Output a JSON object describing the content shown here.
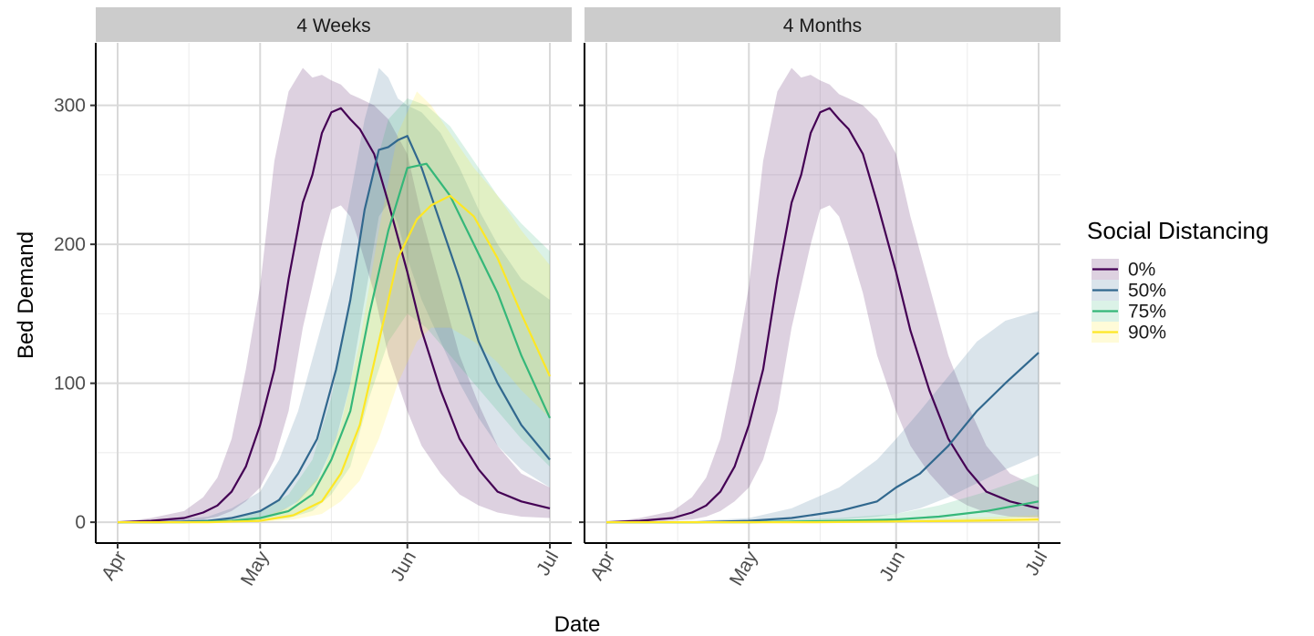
{
  "chart_data": {
    "type": "line",
    "xlabel": "Date",
    "ylabel": "Bed Demand",
    "x_ticks": [
      "Apr",
      "May",
      "Jun",
      "Jul"
    ],
    "xlim": [
      "2020-04-01",
      "2020-07-01"
    ],
    "y_ticks": [
      0,
      100,
      200,
      300
    ],
    "ylim": [
      -15,
      345
    ],
    "grid": true,
    "legend": {
      "title": "Social Distancing",
      "position": "right",
      "entries": [
        "0%",
        "50%",
        "75%",
        "90%"
      ]
    },
    "colors": {
      "0%": "#440154",
      "50%": "#31688e",
      "75%": "#35b779",
      "90%": "#fde725"
    },
    "panels": [
      {
        "title": "4 Weeks",
        "series": [
          {
            "name": "0%",
            "x": [
              "2020-04-01",
              "2020-04-08",
              "2020-04-15",
              "2020-04-19",
              "2020-04-22",
              "2020-04-25",
              "2020-04-28",
              "2020-05-01",
              "2020-05-04",
              "2020-05-07",
              "2020-05-10",
              "2020-05-12",
              "2020-05-14",
              "2020-05-16",
              "2020-05-18",
              "2020-05-20",
              "2020-05-22",
              "2020-05-25",
              "2020-05-28",
              "2020-06-01",
              "2020-06-04",
              "2020-06-08",
              "2020-06-12",
              "2020-06-16",
              "2020-06-20",
              "2020-06-25",
              "2020-07-01"
            ],
            "mean": [
              0,
              1,
              3,
              7,
              12,
              22,
              40,
              70,
              110,
              175,
              230,
              250,
              280,
              295,
              298,
              290,
              283,
              265,
              230,
              180,
              138,
              95,
              60,
              38,
              22,
              15,
              10
            ],
            "lower": [
              0,
              0,
              1,
              2,
              4,
              8,
              15,
              25,
              45,
              80,
              140,
              170,
              200,
              225,
              228,
              220,
              200,
              165,
              120,
              80,
              55,
              35,
              20,
              12,
              7,
              4,
              3
            ],
            "upper": [
              0,
              3,
              8,
              18,
              32,
              60,
              110,
              170,
              260,
              310,
              327,
              320,
              322,
              318,
              315,
              308,
              305,
              300,
              290,
              265,
              220,
              170,
              120,
              85,
              55,
              35,
              25
            ]
          },
          {
            "name": "50%",
            "x": [
              "2020-04-01",
              "2020-04-10",
              "2020-04-20",
              "2020-04-25",
              "2020-05-01",
              "2020-05-05",
              "2020-05-09",
              "2020-05-13",
              "2020-05-17",
              "2020-05-20",
              "2020-05-23",
              "2020-05-26",
              "2020-05-28",
              "2020-05-30",
              "2020-06-01",
              "2020-06-04",
              "2020-06-08",
              "2020-06-12",
              "2020-06-16",
              "2020-06-20",
              "2020-06-25",
              "2020-07-01"
            ],
            "mean": [
              0,
              0,
              1,
              3,
              8,
              16,
              35,
              60,
              110,
              160,
              225,
              268,
              270,
              275,
              278,
              255,
              215,
              175,
              130,
              100,
              70,
              45
            ],
            "lower": [
              0,
              0,
              0,
              1,
              3,
              7,
              15,
              30,
              60,
              100,
              160,
              220,
              230,
              215,
              190,
              160,
              130,
              100,
              75,
              55,
              38,
              25
            ],
            "upper": [
              0,
              1,
              4,
              10,
              22,
              45,
              80,
              130,
              180,
              235,
              290,
              327,
              320,
              305,
              300,
              295,
              280,
              255,
              225,
              200,
              175,
              160
            ]
          },
          {
            "name": "75%",
            "x": [
              "2020-04-01",
              "2020-04-15",
              "2020-04-25",
              "2020-05-01",
              "2020-05-07",
              "2020-05-12",
              "2020-05-16",
              "2020-05-20",
              "2020-05-24",
              "2020-05-28",
              "2020-06-01",
              "2020-06-05",
              "2020-06-10",
              "2020-06-15",
              "2020-06-20",
              "2020-06-25",
              "2020-07-01"
            ],
            "mean": [
              0,
              0,
              1,
              3,
              8,
              20,
              45,
              80,
              150,
              210,
              255,
              258,
              235,
              200,
              165,
              120,
              75
            ],
            "lower": [
              0,
              0,
              0,
              1,
              3,
              8,
              20,
              40,
              90,
              130,
              150,
              140,
              120,
              100,
              80,
              60,
              40
            ],
            "upper": [
              0,
              1,
              3,
              8,
              20,
              45,
              90,
              160,
              240,
              290,
              305,
              300,
              285,
              260,
              235,
              215,
              195
            ]
          },
          {
            "name": "90%",
            "x": [
              "2020-04-01",
              "2020-04-20",
              "2020-05-01",
              "2020-05-08",
              "2020-05-14",
              "2020-05-18",
              "2020-05-22",
              "2020-05-26",
              "2020-05-30",
              "2020-06-03",
              "2020-06-06",
              "2020-06-10",
              "2020-06-15",
              "2020-06-20",
              "2020-06-25",
              "2020-07-01"
            ],
            "mean": [
              0,
              0,
              1,
              5,
              15,
              35,
              70,
              130,
              190,
              218,
              228,
              235,
              220,
              190,
              150,
              105
            ],
            "lower": [
              0,
              0,
              0,
              2,
              6,
              15,
              30,
              60,
              100,
              130,
              140,
              140,
              130,
              115,
              95,
              75
            ],
            "upper": [
              0,
              1,
              3,
              12,
              35,
              70,
              130,
              210,
              280,
              310,
              300,
              280,
              255,
              235,
              210,
              185
            ]
          }
        ]
      },
      {
        "title": "4 Months",
        "series": [
          {
            "name": "0%",
            "x": [
              "2020-04-01",
              "2020-04-08",
              "2020-04-15",
              "2020-04-19",
              "2020-04-22",
              "2020-04-25",
              "2020-04-28",
              "2020-05-01",
              "2020-05-04",
              "2020-05-07",
              "2020-05-10",
              "2020-05-12",
              "2020-05-14",
              "2020-05-16",
              "2020-05-18",
              "2020-05-20",
              "2020-05-22",
              "2020-05-25",
              "2020-05-28",
              "2020-06-01",
              "2020-06-04",
              "2020-06-08",
              "2020-06-12",
              "2020-06-16",
              "2020-06-20",
              "2020-06-25",
              "2020-07-01"
            ],
            "mean": [
              0,
              1,
              3,
              7,
              12,
              22,
              40,
              70,
              110,
              175,
              230,
              250,
              280,
              295,
              298,
              290,
              283,
              265,
              230,
              180,
              138,
              95,
              60,
              38,
              22,
              15,
              10
            ],
            "lower": [
              0,
              0,
              1,
              2,
              4,
              8,
              15,
              25,
              45,
              80,
              140,
              170,
              200,
              225,
              228,
              220,
              200,
              165,
              120,
              80,
              55,
              35,
              20,
              12,
              7,
              4,
              3
            ],
            "upper": [
              0,
              3,
              8,
              18,
              32,
              60,
              110,
              170,
              260,
              310,
              327,
              320,
              322,
              318,
              315,
              308,
              305,
              300,
              290,
              265,
              220,
              170,
              120,
              85,
              55,
              35,
              25
            ]
          },
          {
            "name": "50%",
            "x": [
              "2020-04-01",
              "2020-04-20",
              "2020-05-01",
              "2020-05-10",
              "2020-05-20",
              "2020-05-28",
              "2020-06-01",
              "2020-06-06",
              "2020-06-12",
              "2020-06-18",
              "2020-06-24",
              "2020-07-01"
            ],
            "mean": [
              0,
              0,
              1,
              3,
              8,
              15,
              25,
              35,
              55,
              80,
              100,
              122
            ],
            "lower": [
              0,
              0,
              0,
              1,
              2,
              4,
              6,
              10,
              18,
              28,
              38,
              48
            ],
            "upper": [
              0,
              1,
              3,
              10,
              25,
              45,
              60,
              80,
              105,
              130,
              145,
              152
            ]
          },
          {
            "name": "75%",
            "x": [
              "2020-04-01",
              "2020-05-01",
              "2020-05-20",
              "2020-06-01",
              "2020-06-10",
              "2020-06-20",
              "2020-07-01"
            ],
            "mean": [
              0,
              0,
              1,
              2,
              4,
              8,
              15
            ],
            "lower": [
              0,
              0,
              0,
              0,
              1,
              2,
              4
            ],
            "upper": [
              0,
              1,
              3,
              6,
              12,
              22,
              35
            ]
          },
          {
            "name": "90%",
            "x": [
              "2020-04-01",
              "2020-05-15",
              "2020-06-15",
              "2020-07-01"
            ],
            "mean": [
              0,
              0,
              1,
              2
            ],
            "lower": [
              0,
              0,
              0,
              0
            ],
            "upper": [
              0,
              1,
              3,
              5
            ]
          }
        ]
      }
    ]
  }
}
